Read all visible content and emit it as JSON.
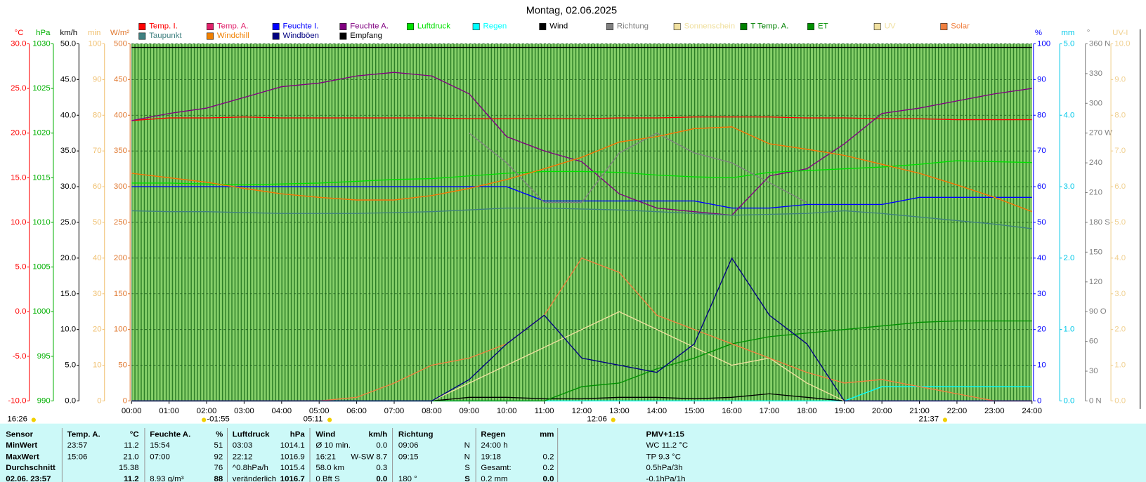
{
  "chart_data": {
    "type": "line",
    "title": "Montag, 02.06.2025",
    "categories": [
      "00:00",
      "01:00",
      "02:00",
      "03:00",
      "04:00",
      "05:00",
      "06:00",
      "07:00",
      "08:00",
      "09:00",
      "10:00",
      "11:00",
      "12:00",
      "13:00",
      "14:00",
      "15:00",
      "16:00",
      "17:00",
      "18:00",
      "19:00",
      "20:00",
      "21:00",
      "22:00",
      "23:00",
      "24:00"
    ],
    "grid": true,
    "axes": [
      {
        "label": "°C",
        "color": "#ff0000",
        "side": "left",
        "lim": [
          -10,
          30
        ],
        "ticks": [
          {
            "value": -10,
            "label": "-10.0"
          },
          {
            "value": -5,
            "label": "-5.0"
          },
          {
            "value": 0,
            "label": "0.0"
          },
          {
            "value": 5,
            "label": "5.0"
          },
          {
            "value": 10,
            "label": "10.0"
          },
          {
            "value": 15,
            "label": "15.0"
          },
          {
            "value": 20,
            "label": "20.0"
          },
          {
            "value": 25,
            "label": "25.0"
          },
          {
            "value": 30,
            "label": "30.0"
          }
        ]
      },
      {
        "label": "hPa",
        "color": "#00b000",
        "side": "left",
        "lim": [
          990,
          1030
        ],
        "ticks": [
          990,
          995,
          1000,
          1005,
          1010,
          1015,
          1020,
          1025,
          1030
        ]
      },
      {
        "label": "km/h",
        "color": "#000000",
        "side": "left",
        "lim": [
          0,
          50
        ],
        "ticks": [
          {
            "value": 0,
            "label": "0.0"
          },
          {
            "value": 5,
            "label": "5.0"
          },
          {
            "value": 10,
            "label": "10.0"
          },
          {
            "value": 15,
            "label": "15.0"
          },
          {
            "value": 20,
            "label": "20.0"
          },
          {
            "value": 25,
            "label": "25.0"
          },
          {
            "value": 30,
            "label": "30.0"
          },
          {
            "value": 35,
            "label": "35.0"
          },
          {
            "value": 40,
            "label": "40.0"
          },
          {
            "value": 45,
            "label": "45.0"
          },
          {
            "value": 50,
            "label": "50.0"
          }
        ]
      },
      {
        "label": "min",
        "color": "#f0c070",
        "side": "left",
        "lim": [
          0,
          100
        ],
        "ticks": [
          0,
          10,
          20,
          30,
          40,
          50,
          60,
          70,
          80,
          90,
          100
        ]
      },
      {
        "label": "W/m²",
        "color": "#e07830",
        "side": "left",
        "lim": [
          0,
          500
        ],
        "ticks": [
          0,
          50,
          100,
          150,
          200,
          250,
          300,
          350,
          400,
          450,
          500
        ]
      },
      {
        "label": "%",
        "color": "#0000ff",
        "side": "right",
        "lim": [
          0,
          100
        ],
        "ticks": [
          0,
          10,
          20,
          30,
          40,
          50,
          60,
          70,
          80,
          90,
          100
        ]
      },
      {
        "label": "mm",
        "color": "#00c8e8",
        "side": "right",
        "lim": [
          0,
          5
        ],
        "ticks": [
          {
            "value": 0,
            "label": "0.0"
          },
          {
            "value": 1,
            "label": "1.0"
          },
          {
            "value": 2,
            "label": "2.0"
          },
          {
            "value": 3,
            "label": "3.0"
          },
          {
            "value": 4,
            "label": "4.0"
          },
          {
            "value": 5,
            "label": "5.0"
          }
        ]
      },
      {
        "label": "°",
        "color": "#808080",
        "side": "right",
        "lim": [
          0,
          360
        ],
        "ticks": [
          {
            "value": 0,
            "label": "0 N"
          },
          30,
          60,
          {
            "value": 90,
            "label": "90 O"
          },
          120,
          150,
          {
            "value": 180,
            "label": "180 S"
          },
          210,
          240,
          {
            "value": 270,
            "label": "270 W"
          },
          300,
          330,
          {
            "value": 360,
            "label": "360 N"
          }
        ]
      },
      {
        "label": "UV-I",
        "color": "#f0d090",
        "side": "right",
        "lim": [
          0,
          10
        ],
        "ticks": [
          {
            "value": 0,
            "label": "0.0"
          },
          {
            "value": 1,
            "label": "1.0"
          },
          {
            "value": 2,
            "label": "2.0"
          },
          {
            "value": 3,
            "label": "3.0"
          },
          {
            "value": 4,
            "label": "4.0"
          },
          {
            "value": 5,
            "label": "5.0"
          },
          {
            "value": 6,
            "label": "6.0"
          },
          {
            "value": 7,
            "label": "7.0"
          },
          {
            "value": 8,
            "label": "8.0"
          },
          {
            "value": 9,
            "label": "9.0"
          },
          {
            "value": 10,
            "label": "10.0"
          }
        ]
      }
    ],
    "series": [
      {
        "name": "Temp. I.",
        "color": "#ff0000",
        "axis": 0,
        "values": [
          21.4,
          21.7,
          21.7,
          21.8,
          21.7,
          21.7,
          21.7,
          21.7,
          21.7,
          21.6,
          21.6,
          21.6,
          21.6,
          21.7,
          21.7,
          21.8,
          21.8,
          21.8,
          21.7,
          21.7,
          21.6,
          21.6,
          21.5,
          21.5,
          21.5
        ]
      },
      {
        "name": "Temp. A.",
        "color": "#e0206a",
        "axis": 0,
        "values": [
          15.5,
          15.0,
          14.5,
          13.8,
          13.2,
          12.8,
          12.5,
          12.5,
          13.0,
          13.8,
          14.8,
          16.0,
          17.3,
          19.0,
          19.6,
          20.5,
          20.7,
          18.8,
          18.2,
          17.5,
          16.5,
          15.5,
          14.2,
          12.8,
          11.2
        ]
      },
      {
        "name": "Feuchte I.",
        "color": "#0000ff",
        "axis": 5,
        "values": [
          60,
          60,
          60,
          60,
          60,
          60,
          60,
          60,
          60,
          60,
          60,
          56,
          56,
          56,
          56,
          56,
          54,
          54,
          55,
          55,
          55,
          57,
          57,
          57,
          57
        ]
      },
      {
        "name": "Feuchte A.",
        "color": "#800080",
        "axis": 5,
        "values": [
          78.5,
          80.5,
          82,
          85,
          88,
          89,
          91,
          92,
          91,
          86,
          74,
          70,
          67,
          58,
          54,
          53,
          52,
          63,
          65,
          72,
          80.5,
          82,
          84,
          86,
          87.5
        ]
      },
      {
        "name": "Luftdruck",
        "color": "#00e000",
        "axis": 1,
        "values": [
          1014.4,
          1014.4,
          1014.3,
          1014.2,
          1014.3,
          1014.4,
          1014.6,
          1014.8,
          1014.9,
          1015.2,
          1015.5,
          1015.7,
          1015.7,
          1015.6,
          1015.3,
          1015.1,
          1015.0,
          1015.6,
          1015.8,
          1016.0,
          1016.2,
          1016.5,
          1016.9,
          1016.8,
          1016.7
        ]
      },
      {
        "name": "Regen",
        "color": "#00ffff",
        "axis": 6,
        "values": [
          0,
          0,
          0,
          0,
          0,
          0,
          0,
          0,
          0,
          0,
          0,
          0,
          0,
          0,
          0,
          0,
          0,
          0,
          0,
          0,
          0.2,
          0.2,
          0.2,
          0.2,
          0.2
        ]
      },
      {
        "name": "Wind",
        "color": "#000000",
        "axis": 2,
        "values": [
          0,
          0,
          0,
          0,
          0,
          0,
          0,
          0,
          0,
          0.5,
          0.5,
          0.3,
          0.3,
          0.5,
          0.5,
          0.3,
          0.5,
          1.0,
          0.5,
          0,
          0,
          0,
          0,
          0,
          0
        ]
      },
      {
        "name": "Richtung",
        "color": "#808080",
        "axis": 7,
        "values": [
          null,
          null,
          null,
          null,
          null,
          null,
          null,
          null,
          null,
          270,
          240,
          200,
          200,
          250,
          270,
          250,
          240,
          220,
          200,
          null,
          null,
          null,
          null,
          null,
          null
        ]
      },
      {
        "name": "Sonnenschein",
        "color": "#f0e0a0",
        "axis": 3,
        "values": [
          0,
          0,
          0,
          0,
          0,
          0,
          0,
          0,
          0,
          5,
          10,
          15,
          20,
          25,
          20,
          15,
          10,
          12,
          5,
          0,
          0,
          0,
          0,
          0,
          0
        ]
      },
      {
        "name": "T Temp. A.",
        "color": "#008000",
        "axis": 0,
        "values": [
          null,
          null,
          null,
          null,
          null,
          null,
          null,
          null,
          null,
          null,
          null,
          null,
          null,
          null,
          null,
          null,
          null,
          null,
          null,
          null,
          null,
          null,
          null,
          null,
          null
        ]
      },
      {
        "name": "ET",
        "color": "#009000",
        "axis": 6,
        "values": [
          0,
          0,
          0,
          0,
          0,
          0,
          0,
          0,
          0,
          0,
          0,
          0,
          0.2,
          0.25,
          0.45,
          0.6,
          0.8,
          0.9,
          0.95,
          1.0,
          1.05,
          1.1,
          1.12,
          1.12,
          1.12
        ]
      },
      {
        "name": "UV",
        "color": "#f0e0a0",
        "axis": 8,
        "values": [
          null,
          null,
          null,
          null,
          null,
          null,
          null,
          null,
          null,
          null,
          null,
          null,
          null,
          null,
          null,
          null,
          null,
          null,
          null,
          null,
          null,
          null,
          null,
          null,
          null
        ]
      },
      {
        "name": "Solar",
        "color": "#f08040",
        "axis": 4,
        "values": [
          0,
          0,
          0,
          0,
          0,
          0,
          5,
          25,
          50,
          60,
          80,
          120,
          200,
          180,
          120,
          100,
          80,
          60,
          40,
          25,
          30,
          20,
          10,
          0,
          0
        ]
      },
      {
        "name": "Taupunkt",
        "color": "#408080",
        "axis": 0,
        "values": [
          11.3,
          11.2,
          11.2,
          11.1,
          11.0,
          11.0,
          11.0,
          11.1,
          11.2,
          11.4,
          11.6,
          11.6,
          11.5,
          11.4,
          11.2,
          11.0,
          10.8,
          10.9,
          11.0,
          11.3,
          11.0,
          10.6,
          10.2,
          9.8,
          9.3
        ]
      },
      {
        "name": "Windchill",
        "color": "#f08000",
        "axis": 0,
        "values": [
          15.5,
          15.0,
          14.5,
          13.8,
          13.2,
          12.8,
          12.5,
          12.5,
          13.0,
          13.8,
          14.8,
          16.0,
          17.3,
          19.0,
          19.6,
          20.5,
          20.7,
          18.8,
          18.2,
          17.5,
          16.5,
          15.5,
          14.2,
          12.8,
          11.2
        ]
      },
      {
        "name": "Windböen",
        "color": "#000080",
        "axis": 2,
        "values": [
          0,
          0,
          0,
          0,
          0,
          0,
          0,
          0,
          0,
          3,
          8,
          12,
          6,
          5,
          4,
          8,
          20,
          12,
          8,
          0,
          0,
          0,
          0,
          0,
          0
        ]
      },
      {
        "name": "Empfang",
        "color": "#000000",
        "axis": 5,
        "values": [
          99,
          99,
          99,
          99,
          99,
          99,
          99,
          99,
          99,
          99,
          99,
          99,
          99,
          99,
          99,
          99,
          99,
          99,
          99,
          99,
          99,
          99,
          99,
          99,
          99
        ]
      }
    ],
    "annotations": [
      "16:26",
      "-01:55",
      "05:11",
      "12:06",
      "21:37"
    ]
  },
  "table": {
    "header": [
      "Sensor",
      "Temp. A.",
      "°C",
      "Feuchte A.",
      "%",
      "Luftdruck",
      "hPa",
      "Wind",
      "km/h",
      "Richtung",
      null,
      "Regen",
      "mm",
      "PMV+1:15"
    ],
    "rows": [
      [
        "MinWert",
        "23:57",
        "11.2",
        "15:54",
        "51",
        "03:03",
        "1014.1",
        "Ø 10 min.",
        "0.0",
        "09:06",
        "N",
        "24:00 h",
        null,
        "WC 11.2 °C"
      ],
      [
        "MaxWert",
        "15:06",
        "21.0",
        "07:00",
        "92",
        "22:12",
        "1016.9",
        "16:21",
        "W-SW 8.7",
        "09:15",
        "N",
        "19:18",
        "0.2",
        "TP 9.3 °C"
      ],
      [
        "Durchschnitt",
        null,
        "15.38",
        null,
        "76",
        "^0.8hPa/h",
        "1015.4",
        "58.0 km",
        "0.3",
        null,
        "S",
        "Gesamt:",
        "0.2",
        "0.5hPa/3h"
      ],
      [
        "02.06. 23:57",
        null,
        "11.2",
        "8.93 g/m³",
        "88",
        "veränderlich",
        "1016.7",
        "0 Bft S",
        "0.0",
        "180 °",
        "S",
        "0.2 mm",
        "0.0",
        "-0.1hPa/1h"
      ]
    ]
  }
}
